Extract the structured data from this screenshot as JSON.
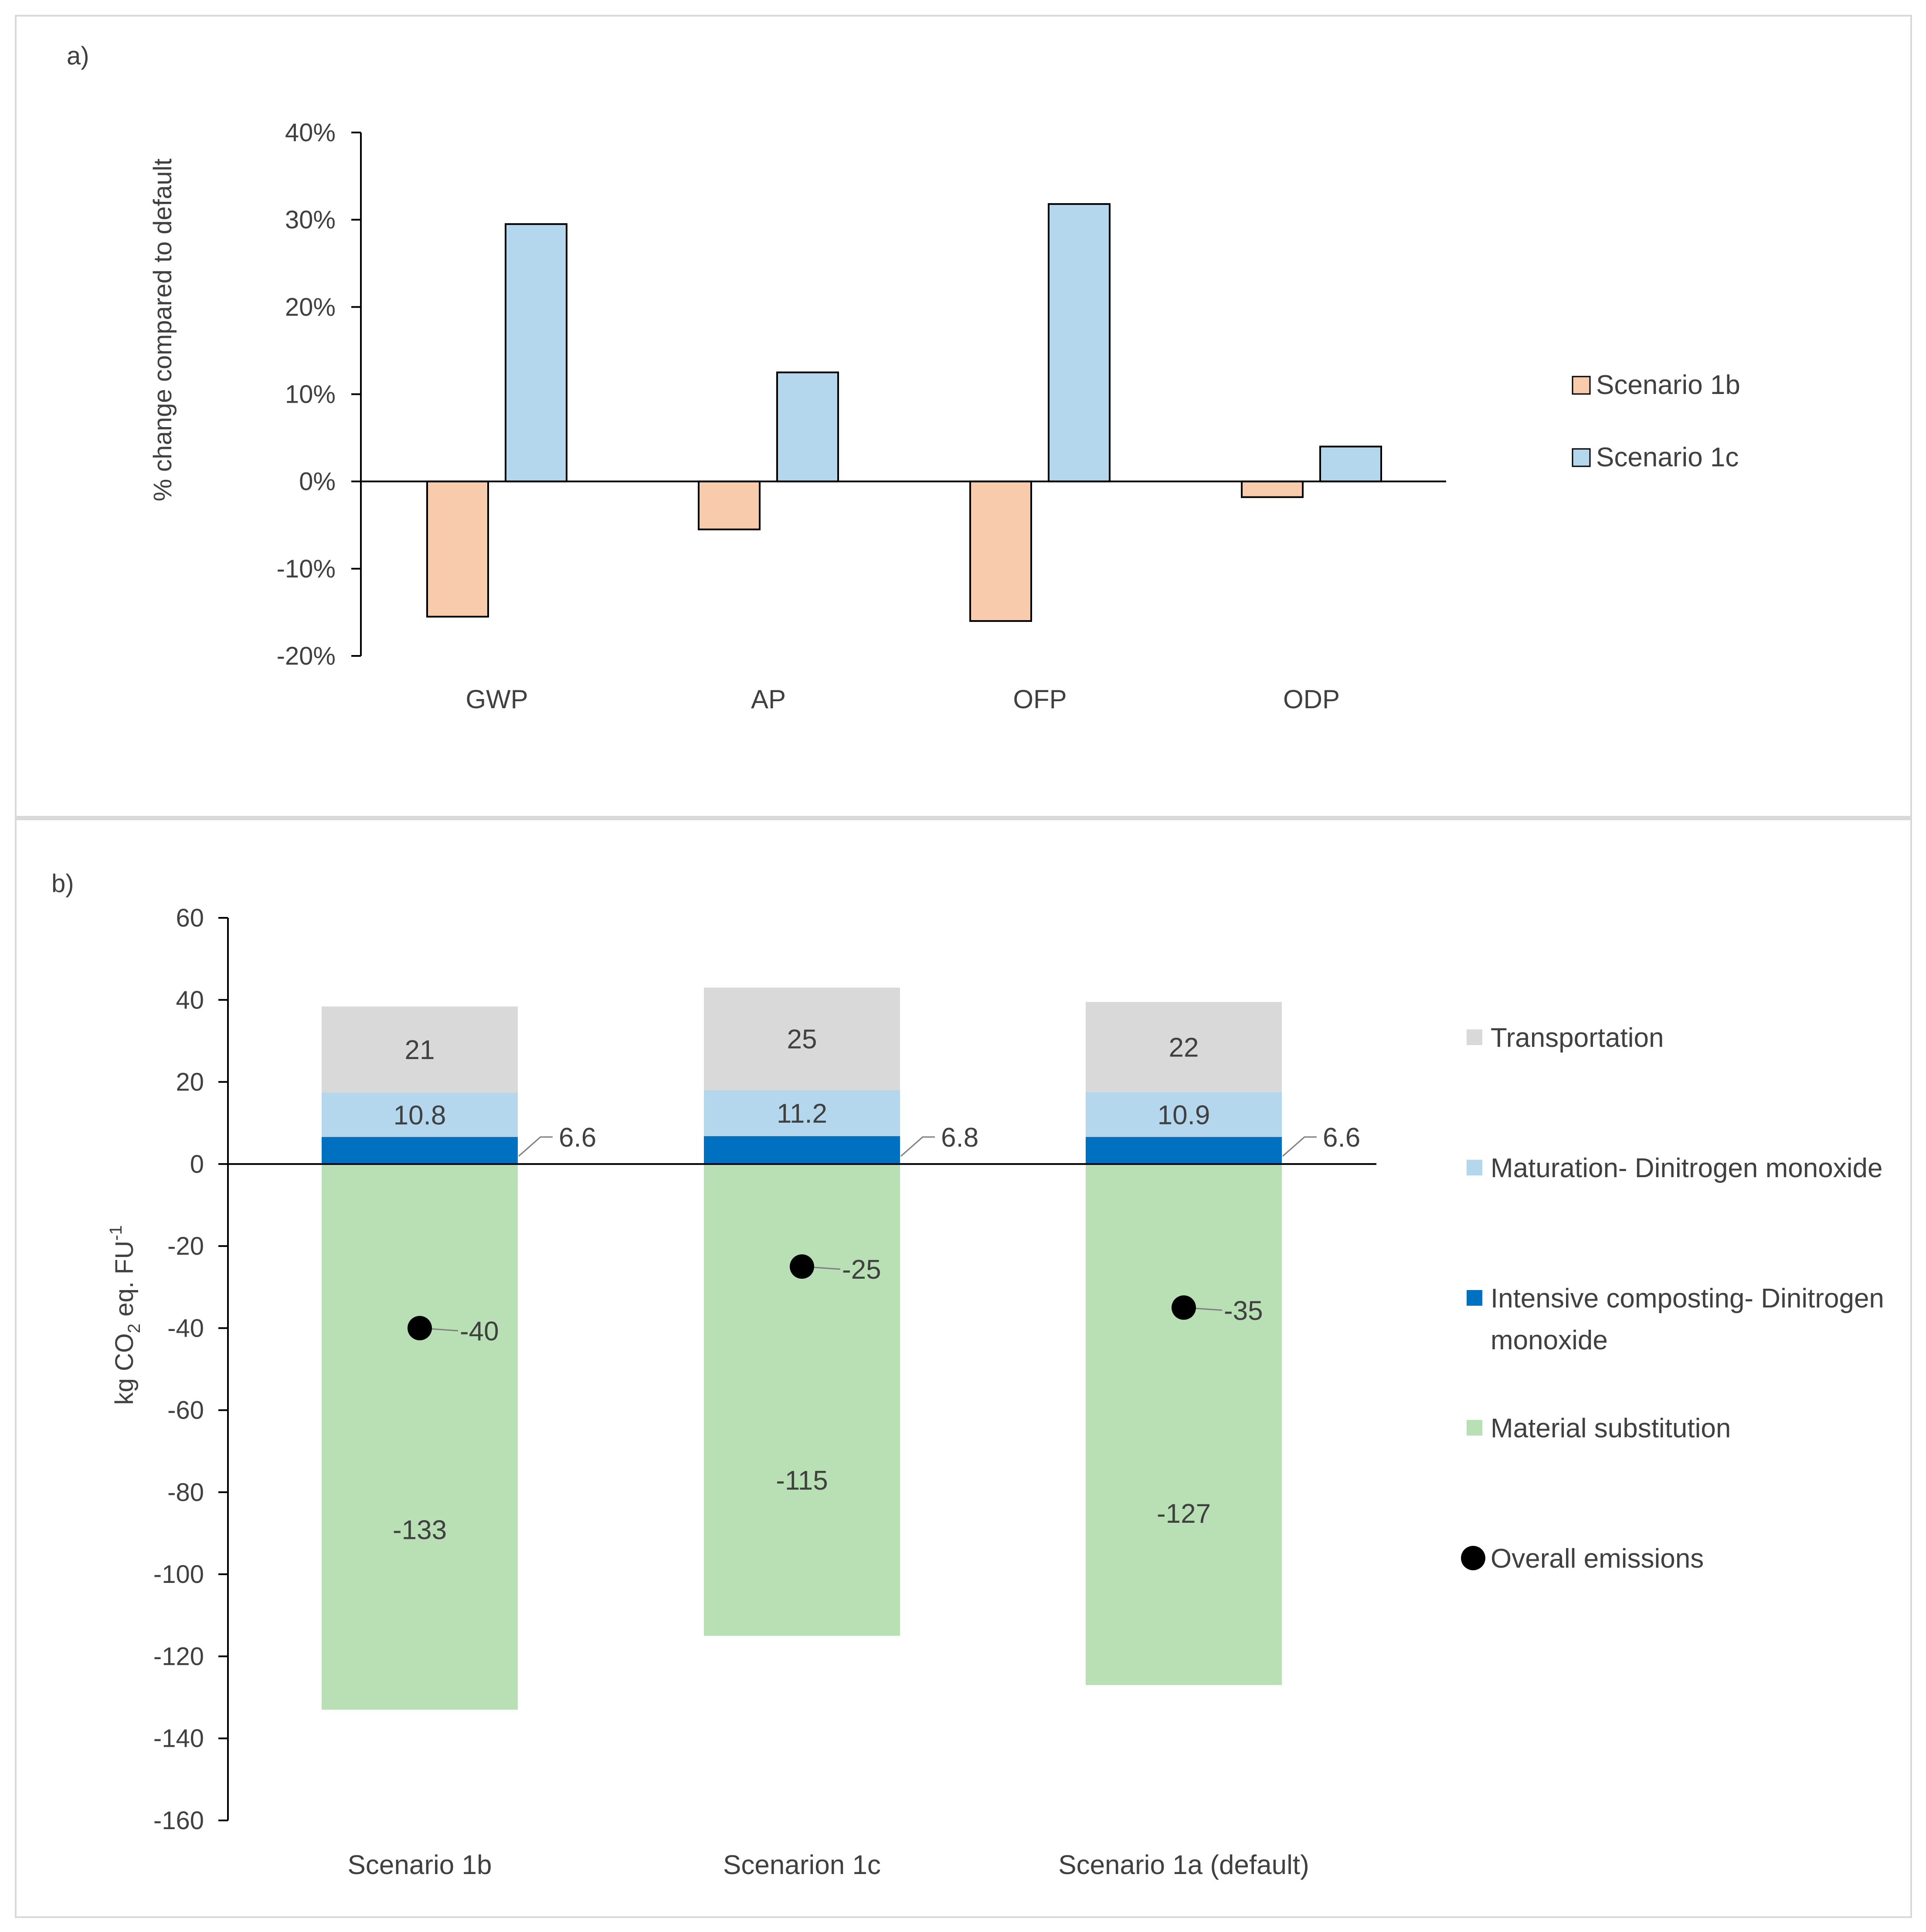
{
  "colors": {
    "scenario_1b_bar": "#f8cbad",
    "scenario_1c_bar": "#b4d7ee",
    "transportation": "#d9d9d9",
    "maturation": "#b4d7ee",
    "intensive": "#0070c0",
    "material": "#b8e0b4",
    "overall": "#000000",
    "axis": "#000000",
    "text": "#404040"
  },
  "chart_data": [
    {
      "panel_label": "a)",
      "type": "bar",
      "title": "",
      "ylabel": "% change compared to default",
      "xlabel": "",
      "categories": [
        "GWP",
        "AP",
        "OFP",
        "ODP"
      ],
      "series": [
        {
          "name": "Scenario 1b",
          "values": [
            -15.5,
            -5.5,
            -16.0,
            -1.8
          ]
        },
        {
          "name": "Scenario 1c",
          "values": [
            29.5,
            12.5,
            31.8,
            4.0
          ]
        }
      ],
      "ylim": [
        -20,
        40
      ],
      "yticks": [
        -20,
        -10,
        0,
        10,
        20,
        30,
        40
      ],
      "ytick_labels": [
        "-20%",
        "-10%",
        "0%",
        "10%",
        "20%",
        "30%",
        "40%"
      ],
      "legend": [
        "Scenario 1b",
        "Scenario 1c"
      ],
      "legend_position": "right",
      "grid": false
    },
    {
      "panel_label": "b)",
      "type": "bar",
      "stacked": true,
      "title": "",
      "ylabel_main": "kg CO",
      "ylabel_sub": "2",
      "ylabel_mid": " eq. FU",
      "ylabel_sup": "-1",
      "xlabel": "",
      "categories": [
        "Scenario 1b",
        "Scenarion 1c",
        "Scenario 1a (default)"
      ],
      "series": [
        {
          "name": "Intensive composting- Dinitrogen monoxide",
          "legend_line1": "Intensive composting- Dinitrogen",
          "legend_line2": "monoxide",
          "values": [
            6.6,
            6.8,
            6.6
          ],
          "labels": [
            "6.6",
            "6.8",
            "6.6"
          ]
        },
        {
          "name": "Maturation- Dinitrogen monoxide",
          "values": [
            10.8,
            11.2,
            10.9
          ],
          "labels": [
            "10.8",
            "11.2",
            "10.9"
          ]
        },
        {
          "name": "Transportation",
          "values": [
            21,
            25,
            22
          ],
          "labels": [
            "21",
            "25",
            "22"
          ]
        },
        {
          "name": "Material substitution",
          "values": [
            -133,
            -115,
            -127
          ],
          "labels": [
            "-133",
            "-115",
            "-127"
          ]
        }
      ],
      "overall": {
        "name": "Overall emissions",
        "values": [
          -40,
          -25,
          -35
        ],
        "labels": [
          "-40",
          "-25",
          "-35"
        ]
      },
      "ylim": [
        -160,
        60
      ],
      "yticks": [
        -160,
        -140,
        -120,
        -100,
        -80,
        -60,
        -40,
        -20,
        0,
        20,
        40,
        60
      ],
      "ytick_labels": [
        "-160",
        "-140",
        "-120",
        "-100",
        "-80",
        "-60",
        "-40",
        "-20",
        "0",
        "20",
        "40",
        "60"
      ],
      "legend_order": [
        "Transportation",
        "Maturation- Dinitrogen monoxide",
        "Intensive composting- Dinitrogen monoxide",
        "Material substitution",
        "Overall emissions"
      ],
      "legend_position": "right",
      "grid": false
    }
  ]
}
